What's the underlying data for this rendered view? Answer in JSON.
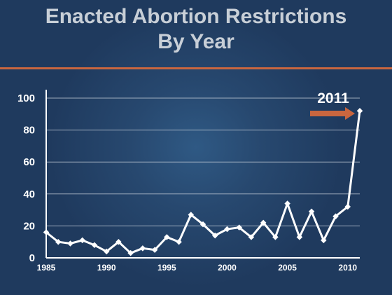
{
  "title_lines": [
    "Enacted Abortion Restrictions",
    "By Year"
  ],
  "colors": {
    "background": "#1f3a5e",
    "accent": "#c9663f",
    "line": "#ffffff",
    "grid": "#c8d0da",
    "text": "#ffffff"
  },
  "chart_data": {
    "type": "line",
    "title": "Enacted Abortion Restrictions By Year",
    "xlabel": "",
    "ylabel": "",
    "xlim": [
      1985,
      2011
    ],
    "ylim": [
      0,
      100
    ],
    "x_ticks": [
      1985,
      1990,
      1995,
      2000,
      2005,
      2010
    ],
    "y_ticks": [
      0,
      20,
      40,
      60,
      80,
      100
    ],
    "grid": true,
    "x": [
      1985,
      1986,
      1987,
      1988,
      1989,
      1990,
      1991,
      1992,
      1993,
      1994,
      1995,
      1996,
      1997,
      1998,
      1999,
      2000,
      2001,
      2002,
      2003,
      2004,
      2005,
      2006,
      2007,
      2008,
      2009,
      2010,
      2011
    ],
    "series": [
      {
        "values": [
          16,
          10,
          9,
          11,
          8,
          4,
          10,
          3,
          6,
          5,
          13,
          10,
          27,
          21,
          14,
          18,
          19,
          13,
          22,
          13,
          34,
          13,
          29,
          11,
          26,
          32,
          92
        ]
      }
    ],
    "annotations": [
      {
        "text": "2011",
        "arrow": "right",
        "target_x": 2011
      }
    ]
  }
}
